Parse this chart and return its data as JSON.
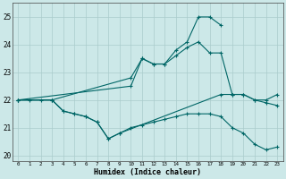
{
  "xlabel": "Humidex (Indice chaleur)",
  "xlim": [
    -0.5,
    23.5
  ],
  "ylim": [
    19.8,
    25.5
  ],
  "yticks": [
    20,
    21,
    22,
    23,
    24,
    25
  ],
  "xticks": [
    0,
    1,
    2,
    3,
    4,
    5,
    6,
    7,
    8,
    9,
    10,
    11,
    12,
    13,
    14,
    15,
    16,
    17,
    18,
    19,
    20,
    21,
    22,
    23
  ],
  "bg_color": "#cce8e8",
  "grid_color": "#aacccc",
  "line_color": "#006666",
  "lines": [
    {
      "x": [
        0,
        1,
        2,
        3,
        10,
        11,
        12,
        13,
        14,
        15,
        16,
        17,
        18
      ],
      "y": [
        22,
        22,
        22,
        22,
        22.8,
        23.5,
        23.3,
        23.3,
        23.8,
        24.1,
        25.0,
        25.0,
        24.7
      ]
    },
    {
      "x": [
        0,
        10,
        11,
        12,
        13,
        14,
        15,
        16,
        17,
        18,
        19,
        20,
        21,
        22,
        23
      ],
      "y": [
        22,
        22.5,
        23.5,
        23.3,
        23.3,
        23.6,
        23.9,
        24.1,
        23.7,
        23.7,
        22.2,
        22.2,
        22.0,
        22.0,
        22.2
      ]
    },
    {
      "x": [
        0,
        3,
        4,
        5,
        6,
        7,
        8,
        9,
        18,
        19,
        20,
        21,
        22,
        23
      ],
      "y": [
        22,
        22,
        21.6,
        21.5,
        21.4,
        21.2,
        20.6,
        20.8,
        22.2,
        22.2,
        22.2,
        22.0,
        21.9,
        21.8
      ]
    },
    {
      "x": [
        0,
        3,
        4,
        5,
        6,
        7,
        8,
        9,
        10,
        11,
        12,
        13,
        14,
        15,
        16,
        17,
        18,
        19,
        20,
        21,
        22,
        23
      ],
      "y": [
        22,
        22,
        21.6,
        21.5,
        21.4,
        21.2,
        20.6,
        20.8,
        21.0,
        21.1,
        21.2,
        21.3,
        21.4,
        21.5,
        21.5,
        21.5,
        21.4,
        21.0,
        20.8,
        20.4,
        20.2,
        20.3
      ]
    }
  ]
}
